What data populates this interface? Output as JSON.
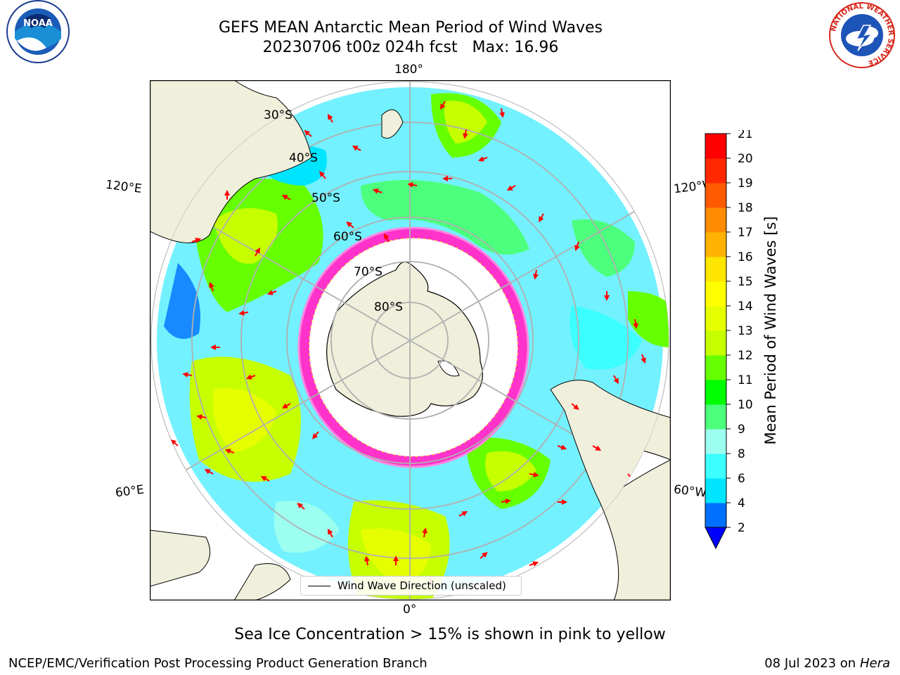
{
  "title": {
    "line1": "GEFS MEAN Antarctic Mean Period of Wind Waves",
    "line2": "20230706 t00z 024h fcst   Max: 16.96"
  },
  "logos": {
    "left": "noaa-logo",
    "left_text": "NOAA",
    "right": "national-weather-service-logo",
    "right_text": "NATIONAL WEATHER SERVICE"
  },
  "map": {
    "projection": "south-polar-stereographic",
    "longitude_labels": {
      "top": "180°",
      "bottom": "0°",
      "upper_left": "120°E",
      "upper_right": "120°W",
      "lower_left": "60°E",
      "lower_right": "60°W"
    },
    "latitude_labels": [
      "30°S",
      "40°S",
      "50°S",
      "60°S",
      "70°S",
      "80°S"
    ],
    "colors": {
      "land": "#efefdb",
      "ocean_no_data": "#ffffff",
      "coast": "#000000",
      "grid": "#b0b0b0",
      "arrow": "#ff0000"
    }
  },
  "legend": {
    "label": "Wind Wave Direction (unscaled)"
  },
  "colorbar": {
    "title": "Mean Period of Wind Waves [s]",
    "ticks": [
      "2",
      "4",
      "6",
      "8",
      "9",
      "10",
      "11",
      "12",
      "13",
      "14",
      "15",
      "16",
      "17",
      "18",
      "19",
      "20",
      "21"
    ],
    "colors": [
      "#0070ff",
      "#00e5ff",
      "#3cffff",
      "#9cfff0",
      "#4cff7c",
      "#00ff00",
      "#66ff00",
      "#c6ff00",
      "#e6ff00",
      "#ffff00",
      "#ffe600",
      "#ffb300",
      "#ff8c00",
      "#ff5a00",
      "#ff2800",
      "#ff0000"
    ],
    "under_color": "#0000ff"
  },
  "footer": {
    "note": "Sea Ice Concentration > 15% is shown in pink to yellow",
    "left": "NCEP/EMC/Verification Post Processing Product Generation Branch",
    "right_date": "08 Jul 2023 on ",
    "right_host": "Hera"
  }
}
